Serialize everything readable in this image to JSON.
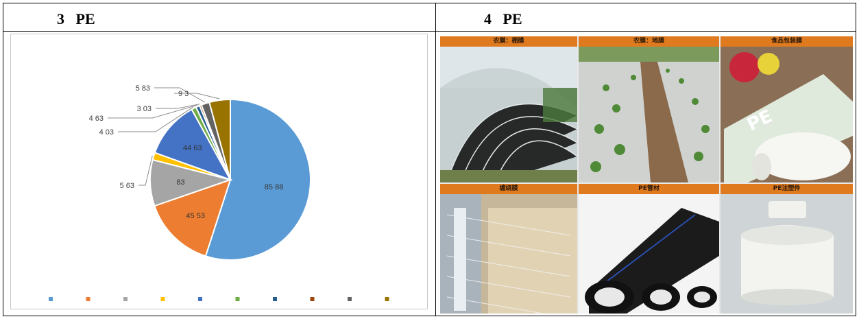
{
  "captions": {
    "left": "3   PE",
    "right": "4   PE"
  },
  "chart_data": {
    "type": "pie",
    "title": "",
    "legend_position": "bottom",
    "labels": [
      "85 88",
      "45 53",
      "83",
      "5 63",
      "44 63",
      "4 03",
      "4 63",
      "3 03",
      "5 83",
      "9   3"
    ],
    "values": [
      85.88,
      23.0,
      14.5,
      2.3,
      18.0,
      1.5,
      1.2,
      0.6,
      2.6,
      6.6
    ],
    "colors": [
      "#5B9BD5",
      "#ED7D31",
      "#A5A5A5",
      "#FFC000",
      "#4472C4",
      "#70AD47",
      "#255E91",
      "#9E480E",
      "#636363",
      "#997300"
    ],
    "legend_entries": [
      "",
      "",
      "",
      "",
      "",
      "",
      "",
      "",
      "",
      ""
    ]
  },
  "photos": [
    {
      "label": "农膜：棚膜",
      "icon": "greenhouse-photo"
    },
    {
      "label": "农膜：地膜",
      "icon": "mulch-field-photo"
    },
    {
      "label": "食品包装膜",
      "icon": "food-wrap-photo"
    },
    {
      "label": "缠绕膜",
      "icon": "stretch-film-photo"
    },
    {
      "label": "PE管材",
      "icon": "pe-pipe-photo"
    },
    {
      "label": "PE注塑件",
      "icon": "injection-part-photo"
    }
  ]
}
